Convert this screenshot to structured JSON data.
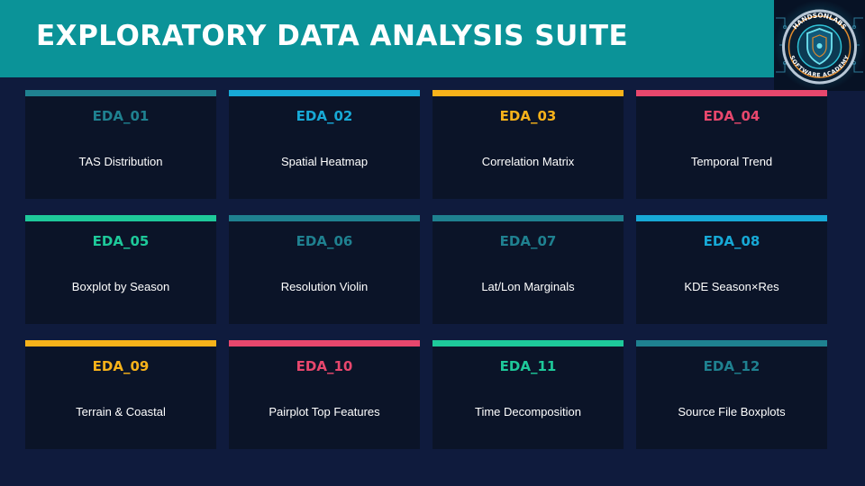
{
  "header": {
    "title": "EXPLORATORY DATA ANALYSIS SUITE",
    "logo": {
      "icon": "shield-circuit-logo",
      "text_top": "HANDSONLABS",
      "text_bottom": "SOFTWARE ACADEMY"
    }
  },
  "cards": [
    {
      "code": "EDA_01",
      "label": "TAS Distribution",
      "color": "#1f8190"
    },
    {
      "code": "EDA_02",
      "label": "Spatial Heatmap",
      "color": "#17a9d6"
    },
    {
      "code": "EDA_03",
      "label": "Correlation Matrix",
      "color": "#f7b21a"
    },
    {
      "code": "EDA_04",
      "label": "Temporal Trend",
      "color": "#e8476d"
    },
    {
      "code": "EDA_05",
      "label": "Boxplot by Season",
      "color": "#1ec99a"
    },
    {
      "code": "EDA_06",
      "label": "Resolution Violin",
      "color": "#1f8190"
    },
    {
      "code": "EDA_07",
      "label": "Lat/Lon Marginals",
      "color": "#1f8190"
    },
    {
      "code": "EDA_08",
      "label": "KDE Season×Res",
      "color": "#17a9d6"
    },
    {
      "code": "EDA_09",
      "label": "Terrain & Coastal",
      "color": "#f7b21a"
    },
    {
      "code": "EDA_10",
      "label": "Pairplot Top Features",
      "color": "#e8476d"
    },
    {
      "code": "EDA_11",
      "label": "Time Decomposition",
      "color": "#1ec99a"
    },
    {
      "code": "EDA_12",
      "label": "Source File Boxplots",
      "color": "#1f8190"
    }
  ]
}
